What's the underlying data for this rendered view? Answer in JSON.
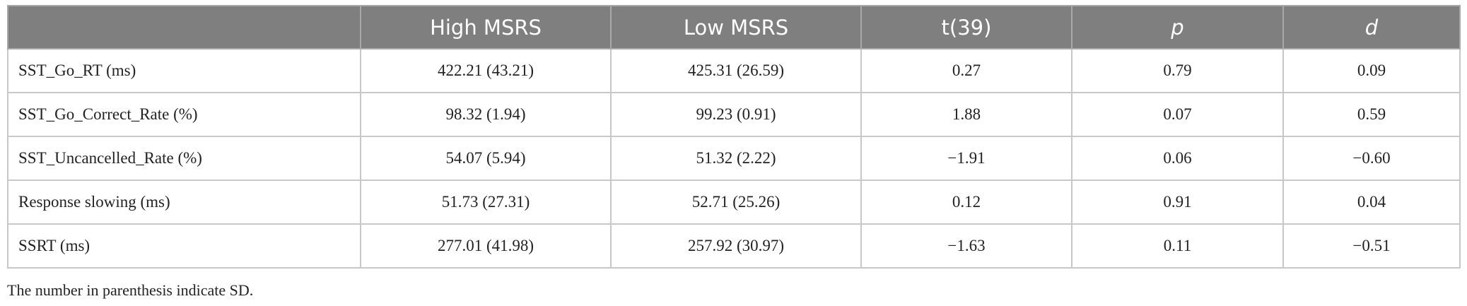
{
  "table": {
    "header": [
      "",
      "High MSRS",
      "Low MSRS",
      "t(39)",
      "p",
      "d"
    ],
    "rows": [
      [
        "SST_Go_RT (ms)",
        "422.21 (43.21)",
        "425.31 (26.59)",
        "0.27",
        "0.79",
        "0.09"
      ],
      [
        "SST_Go_Correct_Rate (%)",
        "98.32 (1.94)",
        "99.23 (0.91)",
        "1.88",
        "0.07",
        "0.59"
      ],
      [
        "SST_Uncancelled_Rate (%)",
        "54.07 (5.94)",
        "51.32 (2.22)",
        "−1.91",
        "0.06",
        "−0.60"
      ],
      [
        "Response slowing (ms)",
        "51.73 (27.31)",
        "52.71 (25.26)",
        "0.12",
        "0.91",
        "0.04"
      ],
      [
        "SSRT (ms)",
        "277.01 (41.98)",
        "257.92 (30.97)",
        "−1.63",
        "0.11",
        "−0.51"
      ]
    ],
    "footnote": "The number in parenthesis indicate SD."
  }
}
